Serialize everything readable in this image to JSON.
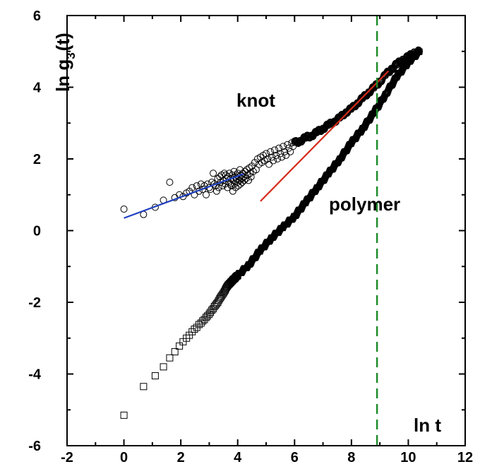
{
  "chart_data": {
    "type": "scatter",
    "title": "",
    "xlabel": "ln t",
    "ylabel_main": "ln g",
    "ylabel_sub": "3",
    "ylabel_tail": "(t)",
    "xlim": [
      -2,
      12
    ],
    "ylim": [
      -6,
      6
    ],
    "xticks": [
      -2,
      0,
      2,
      4,
      6,
      8,
      10,
      12
    ],
    "yticks": [
      -6,
      -4,
      -2,
      0,
      2,
      4,
      6
    ],
    "grid": false,
    "annotations": {
      "knot": "knot",
      "polymer": "polymer"
    },
    "series": [
      {
        "marker": "circle",
        "x": [
          0.0,
          0.69,
          1.1,
          1.39,
          1.61,
          1.79,
          1.95,
          2.08,
          2.2,
          2.3,
          2.4,
          2.48,
          2.56,
          2.64,
          2.71,
          2.77,
          2.83,
          2.89,
          2.94,
          3.0,
          3.04,
          3.09,
          3.14,
          3.18,
          3.22,
          3.26,
          3.3,
          3.33,
          3.37,
          3.4,
          3.43,
          3.47,
          3.5,
          3.53,
          3.56,
          3.58,
          3.61,
          3.64,
          3.66,
          3.69,
          3.71,
          3.74,
          3.76,
          3.78,
          3.81,
          3.83,
          3.85,
          3.87,
          3.89,
          3.91,
          3.93,
          3.95,
          3.97,
          3.99,
          4.0,
          4.02,
          4.04,
          4.06,
          4.08,
          4.1,
          4.12,
          4.14,
          4.16,
          4.18,
          4.2,
          4.23,
          4.26,
          4.29,
          4.32,
          4.35,
          4.38,
          4.41,
          4.44,
          4.47,
          4.5,
          4.55,
          4.6,
          4.65,
          4.7,
          4.75,
          4.8,
          4.85,
          4.9,
          4.95,
          5.0,
          5.05,
          5.1,
          5.15,
          5.2,
          5.25,
          5.3,
          5.35,
          5.4,
          5.45,
          5.5,
          5.55,
          5.6,
          5.65,
          5.7,
          5.75,
          5.8,
          5.85,
          5.9,
          5.95,
          6.0
        ],
        "y": [
          0.6,
          0.45,
          0.65,
          0.85,
          1.35,
          0.92,
          1.0,
          0.95,
          1.05,
          1.1,
          1.2,
          1.0,
          1.25,
          1.1,
          1.3,
          1.15,
          1.25,
          1.0,
          1.3,
          1.2,
          1.15,
          1.35,
          1.6,
          1.3,
          1.25,
          1.1,
          1.45,
          1.2,
          1.5,
          1.35,
          1.55,
          1.25,
          1.4,
          1.6,
          1.3,
          1.55,
          1.45,
          1.2,
          1.5,
          1.35,
          1.6,
          1.3,
          1.45,
          1.25,
          1.55,
          1.1,
          1.4,
          1.65,
          1.3,
          1.5,
          1.2,
          1.45,
          1.55,
          1.35,
          1.6,
          1.25,
          1.5,
          1.4,
          1.7,
          1.3,
          1.55,
          1.45,
          1.35,
          1.6,
          1.5,
          1.4,
          1.65,
          1.45,
          1.7,
          1.55,
          1.4,
          1.75,
          1.6,
          1.5,
          1.8,
          1.65,
          1.9,
          1.7,
          2.0,
          1.85,
          2.05,
          1.9,
          2.1,
          1.95,
          2.15,
          2.0,
          1.85,
          2.2,
          2.05,
          1.95,
          2.25,
          2.1,
          2.0,
          2.3,
          2.15,
          2.05,
          2.35,
          2.2,
          2.1,
          2.4,
          2.3,
          2.2,
          2.45,
          2.35,
          2.5
        ]
      },
      {
        "marker": "circle-dense",
        "x": [
          6.0,
          6.2,
          6.4,
          6.6,
          6.8,
          7.0,
          7.2,
          7.4,
          7.6,
          7.8,
          8.0,
          8.2,
          8.4,
          8.6,
          8.8,
          9.0,
          9.2,
          9.4,
          9.6,
          9.8,
          10.0,
          10.2,
          10.4
        ],
        "y": [
          2.45,
          2.5,
          2.6,
          2.65,
          2.75,
          2.85,
          2.95,
          3.05,
          3.15,
          3.3,
          3.4,
          3.55,
          3.7,
          3.85,
          4.0,
          4.15,
          4.35,
          4.5,
          4.65,
          4.75,
          4.85,
          4.95,
          5.0
        ]
      },
      {
        "marker": "square",
        "x": [
          0.0,
          0.69,
          1.1,
          1.39,
          1.61,
          1.79,
          1.95,
          2.08,
          2.2,
          2.3,
          2.4,
          2.48,
          2.56,
          2.64,
          2.71,
          2.77,
          2.83,
          2.89,
          2.94,
          3.0,
          3.04,
          3.09,
          3.14,
          3.18,
          3.22,
          3.26,
          3.3,
          3.33,
          3.37,
          3.4,
          3.43,
          3.47,
          3.5,
          3.53,
          3.56,
          3.58,
          3.61,
          3.64,
          3.66,
          3.69,
          3.71,
          3.74,
          3.76,
          3.78,
          3.81,
          3.83,
          3.85,
          3.87,
          3.89,
          3.91,
          3.93,
          3.95,
          3.97,
          3.99,
          4.0
        ],
        "y": [
          -5.15,
          -4.35,
          -4.05,
          -3.8,
          -3.55,
          -3.38,
          -3.22,
          -3.1,
          -3.0,
          -2.92,
          -2.82,
          -2.75,
          -2.7,
          -2.62,
          -2.58,
          -2.52,
          -2.48,
          -2.42,
          -2.38,
          -2.33,
          -2.28,
          -2.22,
          -2.18,
          -2.12,
          -2.08,
          -2.04,
          -2.0,
          -1.95,
          -1.9,
          -1.86,
          -1.82,
          -1.78,
          -1.74,
          -1.7,
          -1.66,
          -1.62,
          -1.58,
          -1.55,
          -1.52,
          -1.5,
          -1.48,
          -1.46,
          -1.44,
          -1.42,
          -1.4,
          -1.38,
          -1.36,
          -1.35,
          -1.34,
          -1.32,
          -1.3,
          -1.28,
          -1.27,
          -1.26,
          -1.25
        ]
      },
      {
        "marker": "square-dense",
        "x": [
          4.0,
          4.4,
          4.8,
          5.2,
          5.6,
          6.0,
          6.4,
          6.8,
          7.2,
          7.6,
          8.0,
          8.4,
          8.8,
          9.2,
          9.6,
          10.0,
          10.4
        ],
        "y": [
          -1.25,
          -0.95,
          -0.55,
          -0.2,
          0.1,
          0.4,
          0.8,
          1.2,
          1.6,
          2.0,
          2.45,
          2.85,
          3.3,
          3.8,
          4.3,
          4.7,
          5.0
        ]
      }
    ],
    "fit_lines": [
      {
        "color": "#1f3fbf",
        "x": [
          0.0,
          4.2
        ],
        "y": [
          0.35,
          1.58
        ]
      },
      {
        "color": "#d42a1a",
        "x": [
          4.8,
          9.3
        ],
        "y": [
          0.82,
          4.45
        ]
      }
    ],
    "vline": {
      "x": 8.9,
      "color": "#1e8c2a",
      "style": "dashed"
    },
    "colors": {
      "markers": "#000000",
      "axes": "#000000"
    }
  }
}
